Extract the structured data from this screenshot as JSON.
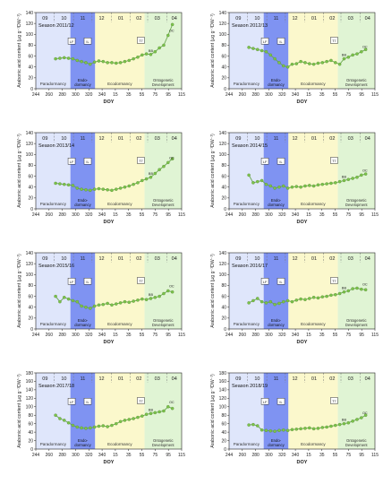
{
  "shared": {
    "x_label": "DOY",
    "y_label": "Arabonic acid content (µg g⁻¹DW⁻¹)",
    "x_ticks": [
      244,
      260,
      280,
      300,
      320,
      340,
      15,
      35,
      55,
      75,
      95,
      115
    ],
    "y_ticks": [
      0,
      20,
      40,
      60,
      80,
      100,
      120,
      140
    ],
    "month_labels": [
      "09",
      "10",
      "11",
      "12",
      "01",
      "02",
      "03",
      "04"
    ],
    "phase_labels": {
      "paradormancy": "Paradormancy",
      "endo": [
        "Endo-",
        "dormancy"
      ],
      "ecodormancy": "Ecodormancy",
      "ontogenetic": [
        "Ontogenetic",
        "Development"
      ]
    },
    "stage_labels": {
      "lf": "LF",
      "il": "IL",
      "t7": "T7",
      "bb": "BB",
      "oc": "OC"
    },
    "colors": {
      "paradormancy": "#dfe6fb",
      "endodormancy": "#7f93f2",
      "ecodormancy": "#fbf8cc",
      "ontogenetic": "#e0f4d4",
      "line": "#6aa84f",
      "marker": "#7cc44a"
    }
  },
  "chart_data": [
    {
      "type": "line",
      "title": "Season 2011/12",
      "x": [
        276,
        283,
        290,
        297,
        304,
        311,
        318,
        325,
        332,
        339,
        346,
        353,
        360,
        367,
        374,
        381,
        388,
        395,
        402,
        409,
        416,
        423,
        430,
        437,
        444,
        451,
        458,
        465
      ],
      "values": [
        55,
        56,
        57,
        56,
        55,
        52,
        50,
        48,
        45,
        49,
        51,
        50,
        48,
        48,
        47,
        48,
        50,
        52,
        55,
        58,
        62,
        64,
        63,
        68,
        75,
        80,
        98,
        118
      ],
      "ylim": [
        0,
        140
      ],
      "xlim": [
        244,
        480
      ]
    },
    {
      "type": "line",
      "title": "Season 2012/13",
      "x": [
        276,
        283,
        290,
        297,
        304,
        311,
        318,
        325,
        332,
        339,
        346,
        353,
        360,
        367,
        374,
        381,
        388,
        395,
        402,
        409,
        416,
        423,
        430,
        437,
        444,
        451,
        458,
        465
      ],
      "values": [
        76,
        74,
        72,
        70,
        68,
        62,
        55,
        48,
        42,
        40,
        45,
        46,
        50,
        48,
        46,
        45,
        47,
        48,
        50,
        52,
        48,
        45,
        55,
        58,
        62,
        64,
        68,
        72
      ],
      "ylim": [
        0,
        140
      ],
      "xlim": [
        244,
        480
      ]
    },
    {
      "type": "line",
      "title": "Season 2013/14",
      "x": [
        276,
        283,
        290,
        297,
        304,
        311,
        318,
        325,
        332,
        339,
        346,
        353,
        360,
        367,
        374,
        381,
        388,
        395,
        402,
        409,
        416,
        423,
        430,
        437,
        444,
        451,
        458,
        465
      ],
      "values": [
        47,
        46,
        45,
        44,
        43,
        38,
        36,
        35,
        34,
        36,
        37,
        36,
        35,
        34,
        36,
        38,
        40,
        42,
        45,
        48,
        52,
        55,
        58,
        65,
        72,
        78,
        85,
        92
      ],
      "ylim": [
        0,
        140
      ],
      "xlim": [
        244,
        480
      ]
    },
    {
      "type": "line",
      "title": "Season 2014/15",
      "x": [
        276,
        283,
        290,
        297,
        304,
        311,
        318,
        325,
        332,
        339,
        346,
        353,
        360,
        367,
        374,
        381,
        388,
        395,
        402,
        409,
        416,
        423,
        430,
        437,
        444,
        451,
        458,
        465
      ],
      "values": [
        62,
        48,
        50,
        52,
        45,
        42,
        38,
        40,
        42,
        38,
        40,
        41,
        40,
        42,
        43,
        42,
        44,
        45,
        46,
        47,
        48,
        50,
        52,
        54,
        56,
        58,
        62,
        64
      ],
      "ylim": [
        0,
        140
      ],
      "xlim": [
        244,
        480
      ]
    },
    {
      "type": "line",
      "title": "Season 2015/16",
      "x": [
        276,
        283,
        290,
        297,
        304,
        311,
        318,
        325,
        332,
        339,
        346,
        353,
        360,
        367,
        374,
        381,
        388,
        395,
        402,
        409,
        416,
        423,
        430,
        437,
        444,
        451,
        458,
        465
      ],
      "values": [
        60,
        50,
        58,
        55,
        52,
        50,
        42,
        40,
        38,
        42,
        44,
        45,
        47,
        44,
        46,
        48,
        50,
        49,
        51,
        53,
        55,
        54,
        56,
        58,
        60,
        65,
        70,
        68
      ],
      "ylim": [
        0,
        140
      ],
      "xlim": [
        244,
        480
      ]
    },
    {
      "type": "line",
      "title": "Season 2016/17",
      "x": [
        276,
        283,
        290,
        297,
        304,
        311,
        318,
        325,
        332,
        339,
        346,
        353,
        360,
        367,
        374,
        381,
        388,
        395,
        402,
        409,
        416,
        423,
        430,
        437,
        444,
        451,
        458,
        465
      ],
      "values": [
        48,
        52,
        56,
        50,
        48,
        50,
        45,
        47,
        50,
        52,
        50,
        53,
        55,
        54,
        56,
        58,
        57,
        59,
        60,
        62,
        63,
        65,
        68,
        70,
        74,
        75,
        73,
        72
      ],
      "ylim": [
        0,
        140
      ],
      "xlim": [
        244,
        480
      ]
    },
    {
      "type": "line",
      "title": "Season 2017/18",
      "x": [
        276,
        283,
        290,
        297,
        304,
        311,
        318,
        325,
        332,
        339,
        346,
        353,
        360,
        367,
        374,
        381,
        388,
        395,
        402,
        409,
        416,
        423,
        430,
        437,
        444,
        451,
        458,
        465
      ],
      "values": [
        80,
        72,
        68,
        62,
        56,
        52,
        50,
        49,
        50,
        52,
        54,
        55,
        53,
        56,
        60,
        65,
        68,
        70,
        72,
        75,
        78,
        82,
        84,
        86,
        88,
        90,
        100,
        96
      ],
      "ylim": [
        0,
        180
      ],
      "xlim": [
        244,
        480
      ]
    },
    {
      "type": "line",
      "title": "Season 2018/19",
      "x": [
        276,
        283,
        290,
        297,
        304,
        311,
        318,
        325,
        332,
        339,
        346,
        353,
        360,
        367,
        374,
        381,
        388,
        395,
        402,
        409,
        416,
        423,
        430,
        437,
        444,
        451,
        458,
        465
      ],
      "values": [
        57,
        58,
        55,
        45,
        44,
        43,
        42,
        44,
        45,
        44,
        46,
        47,
        48,
        49,
        50,
        48,
        49,
        51,
        52,
        54,
        56,
        58,
        60,
        62,
        66,
        70,
        74,
        80
      ],
      "ylim": [
        0,
        180
      ],
      "xlim": [
        244,
        480
      ]
    }
  ]
}
